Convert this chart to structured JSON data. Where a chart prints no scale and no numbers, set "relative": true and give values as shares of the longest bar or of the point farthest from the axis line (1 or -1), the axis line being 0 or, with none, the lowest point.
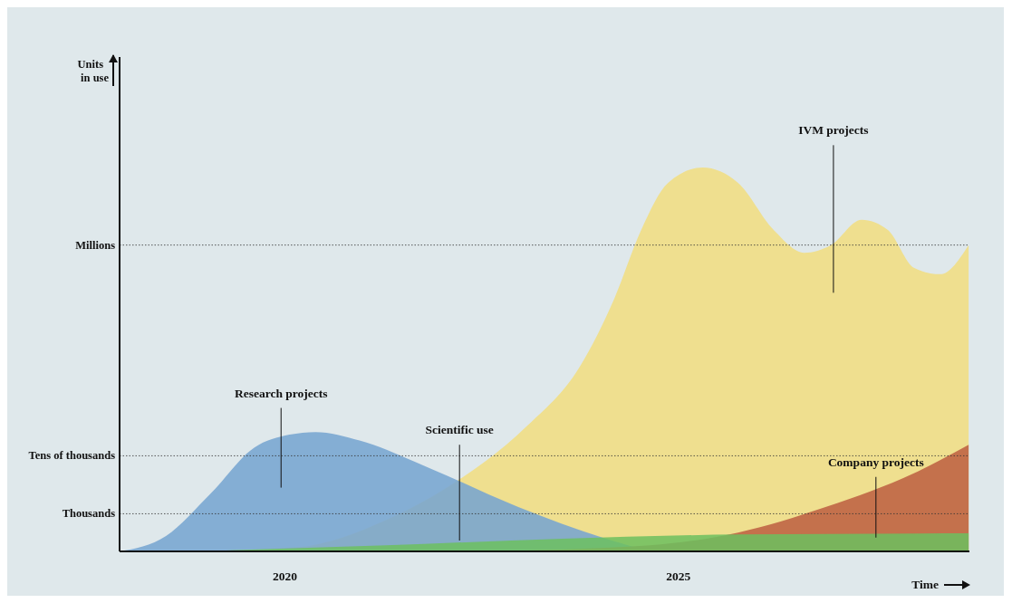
{
  "chart_data": {
    "type": "area",
    "relative": true,
    "xlabel": "Time",
    "annotations": [
      "Units in use"
    ],
    "xlim": [
      2017.9,
      2028.7
    ],
    "xticks": [
      2020,
      2025
    ],
    "ref_lines": [
      {
        "axis": "y",
        "value": 0.798,
        "label": "Millions",
        "line_style": "dotted"
      },
      {
        "axis": "y",
        "value": 0.249,
        "label": "Tens of thousands",
        "line_style": "dotted"
      },
      {
        "axis": "y",
        "value": 0.098,
        "label": "Thousands",
        "line_style": "dotted"
      }
    ],
    "series": [
      {
        "name": "Research projects",
        "color": "#78a5d0",
        "x": [
          2017.9,
          2018.49,
          2019.05,
          2019.61,
          2020.06,
          2020.39,
          2020.95,
          2021.85,
          2022.96,
          2024.08,
          2024.64
        ],
        "values": [
          0,
          0.04,
          0.149,
          0.27,
          0.304,
          0.311,
          0.289,
          0.216,
          0.116,
          0.033,
          0
        ]
      },
      {
        "name": "Scientific use",
        "color": "#6cbf5f",
        "x": [
          2018.83,
          2021.29,
          2023.53,
          2025.76,
          2028.69
        ],
        "values": [
          0,
          0.016,
          0.033,
          0.044,
          0.047
        ]
      },
      {
        "name": "IVM projects",
        "color": "#efdf8f",
        "x": [
          2018.83,
          2020.17,
          2021.29,
          2022.18,
          2023.08,
          2023.75,
          2024.19,
          2024.53,
          2024.87,
          2025.31,
          2025.76,
          2026.21,
          2026.6,
          2026.94,
          2027.33,
          2027.66,
          2028.0,
          2028.33,
          2028.69
        ],
        "values": [
          0,
          0.011,
          0.082,
          0.182,
          0.327,
          0.482,
          0.66,
          0.838,
          0.96,
          1,
          0.96,
          0.838,
          0.778,
          0.798,
          0.864,
          0.838,
          0.738,
          0.722,
          0.798
        ]
      },
      {
        "name": "Company projects",
        "color": "#c4714c",
        "x": [
          2022.4,
          2024.64,
          2025.76,
          2026.88,
          2028.0,
          2028.69
        ],
        "values": [
          0,
          0.016,
          0.049,
          0.116,
          0.204,
          0.278
        ]
      }
    ]
  }
}
